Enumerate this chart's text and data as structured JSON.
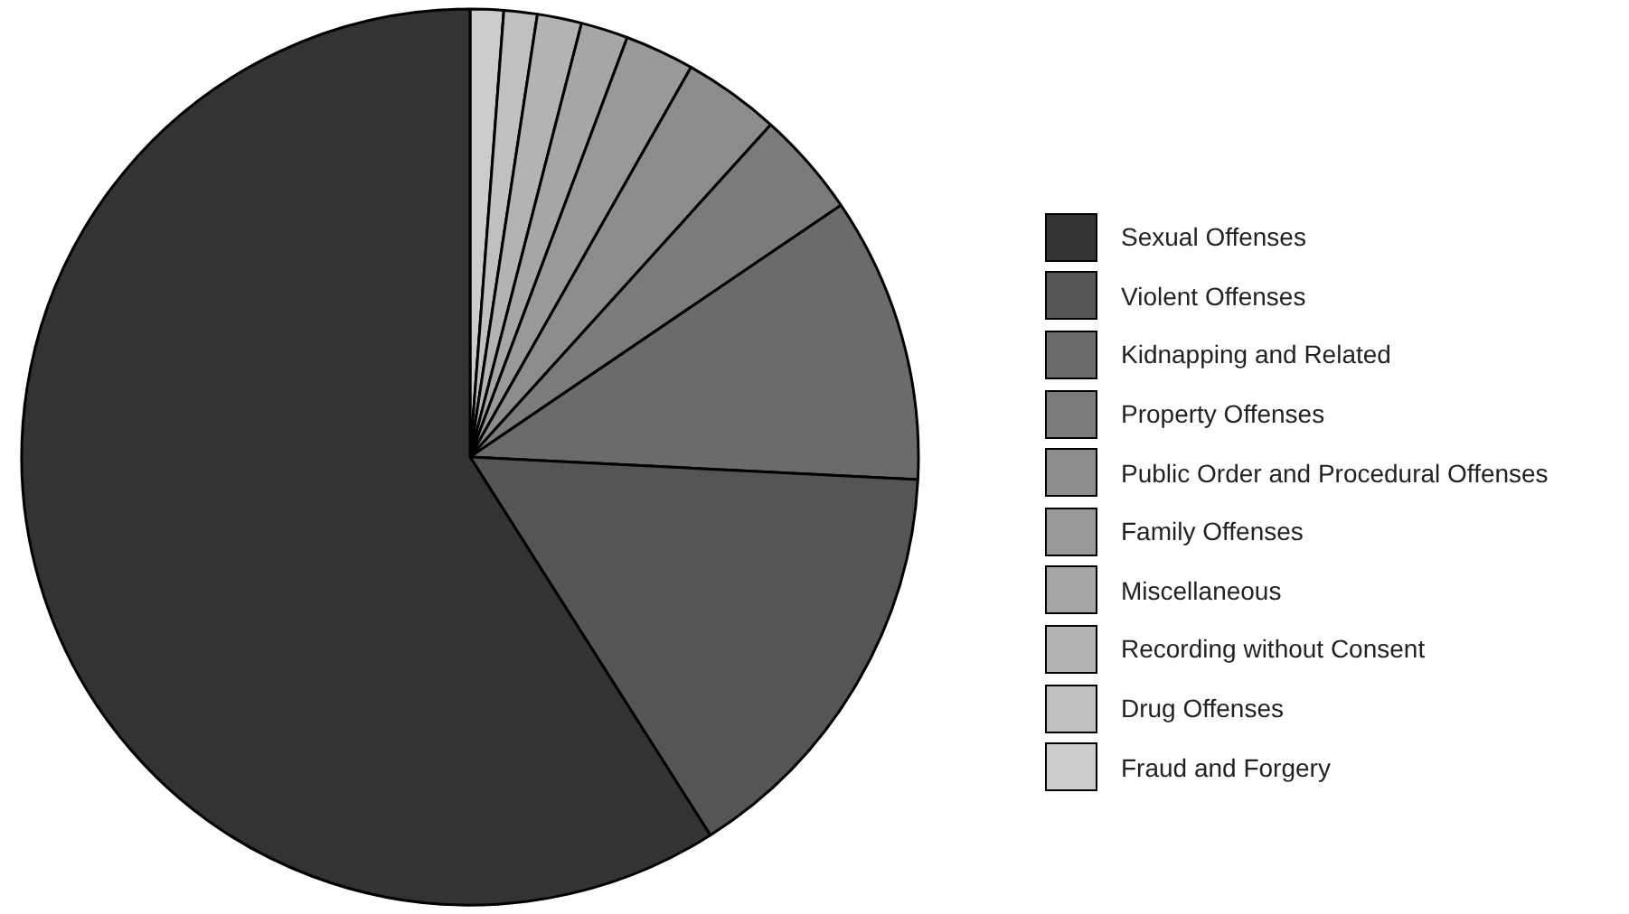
{
  "chart_data": {
    "type": "pie",
    "categories": [
      "Sexual Offenses",
      "Violent Offenses",
      "Kidnapping and Related",
      "Property Offenses",
      "Public Order and Procedural Offenses",
      "Family Offenses",
      "Miscellaneous",
      "Recording without Consent",
      "Drug Offenses",
      "Fraud and Forgery"
    ],
    "values": [
      59.0,
      15.2,
      10.3,
      3.8,
      3.5,
      2.5,
      1.7,
      1.6,
      1.2,
      1.2
    ],
    "colors": [
      "#333333",
      "#555555",
      "#6b6b6b",
      "#7b7b7b",
      "#8c8c8c",
      "#999999",
      "#a6a6a6",
      "#b3b3b3",
      "#c0c0c0",
      "#cccccc"
    ],
    "legend": "right"
  }
}
